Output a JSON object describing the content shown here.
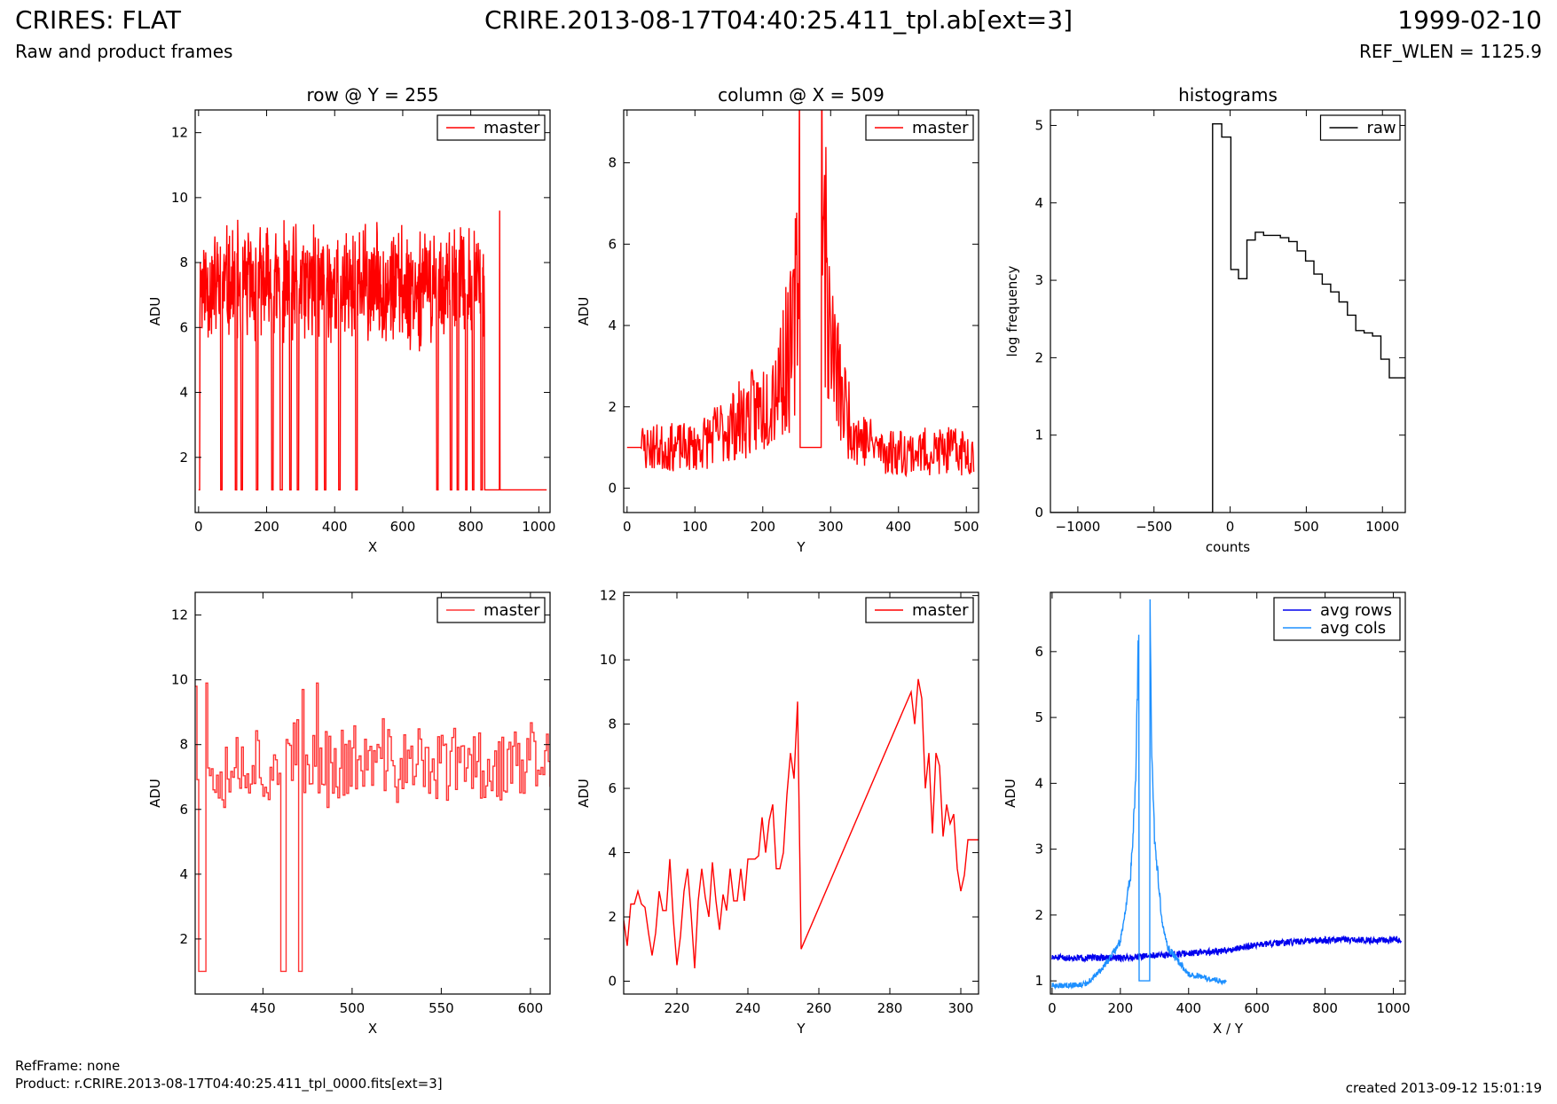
{
  "header": {
    "title_left": "CRIRES: FLAT",
    "subtitle_left": "Raw and product frames",
    "title_center": "CRIRE.2013-08-17T04:40:25.411_tpl.ab[ext=3]",
    "title_right": "1999-02-10",
    "subtitle_right": "REF_WLEN = 1125.9"
  },
  "footer": {
    "refframe": "RefFrame: none",
    "product": "Product: r.CRIRE.2013-08-17T04:40:25.411_tpl_0000.fits[ext=3]",
    "created": "created 2013-09-12 15:01:19"
  },
  "colors": {
    "red": "#ff0000",
    "red_light": "#ff3333",
    "blue": "#0000ee",
    "light_blue": "#1e90ff",
    "black": "#000000"
  },
  "chart_data": [
    {
      "type": "line",
      "title": "row @ Y = 255",
      "xlabel": "X",
      "ylabel": "ADU",
      "xlim": [
        -10,
        1033
      ],
      "ylim": [
        0.3,
        12.7
      ],
      "xticks": [
        0,
        200,
        400,
        600,
        800,
        1000
      ],
      "yticks": [
        2,
        4,
        6,
        8,
        10,
        12
      ],
      "legend": "top-right",
      "series": [
        {
          "name": "master",
          "color": "#ff0000",
          "style": "noise",
          "x_range": [
            0,
            1023
          ],
          "n": 1024,
          "base": 7.3,
          "noise": 1.5,
          "min": 5.0,
          "max": 9.9,
          "seed": 11,
          "drops": [
            [
              0,
              3
            ],
            [
              65,
              69
            ],
            [
              108,
              112
            ],
            [
              125,
              129
            ],
            [
              170,
              174
            ],
            [
              215,
              219
            ],
            [
              240,
              246
            ],
            [
              268,
              272
            ],
            [
              290,
              294
            ],
            [
              345,
              349
            ],
            [
              370,
              374
            ],
            [
              412,
              416
            ],
            [
              462,
              466
            ],
            [
              700,
              704
            ],
            [
              740,
              744
            ],
            [
              760,
              764
            ],
            [
              785,
              789
            ],
            [
              805,
              809
            ],
            [
              830,
              834
            ]
          ],
          "flat_after": 840,
          "flat_value": 1.0,
          "spikes": [
            [
              885,
              9.6
            ]
          ]
        }
      ]
    },
    {
      "type": "line",
      "title": "column @ X = 509",
      "xlabel": "Y",
      "ylabel": "ADU",
      "xlim": [
        -5,
        518
      ],
      "ylim": [
        -0.6,
        9.3
      ],
      "xticks": [
        0,
        100,
        200,
        300,
        400,
        500
      ],
      "yticks": [
        0,
        2,
        4,
        6,
        8
      ],
      "legend": "top-right",
      "series": [
        {
          "name": "master",
          "color": "#ff0000",
          "style": "profile",
          "n": 512,
          "seed": 23,
          "profile": [
            [
              0,
              1.0
            ],
            [
              100,
              1.0
            ],
            [
              150,
              1.5
            ],
            [
              200,
              2.0
            ],
            [
              230,
              3.0
            ],
            [
              245,
              3.5
            ],
            [
              252,
              5.5
            ],
            [
              254,
              8.7
            ],
            [
              255,
              1.0
            ],
            [
              286,
              1.0
            ],
            [
              287,
              9.4
            ],
            [
              292,
              5.5
            ],
            [
              300,
              3.5
            ],
            [
              320,
              2.0
            ],
            [
              340,
              1.3
            ],
            [
              380,
              0.9
            ],
            [
              511,
              0.9
            ]
          ],
          "noise": 0.6,
          "clip_min": 0.1,
          "flat_segments": [
            [
              0,
              20,
              1.0
            ],
            [
              255,
              286,
              1.0
            ]
          ]
        }
      ]
    },
    {
      "type": "line",
      "title": "histograms",
      "xlabel": "counts",
      "ylabel": "log frequency",
      "xlim": [
        -1180,
        1150
      ],
      "ylim": [
        0,
        5.2
      ],
      "xticks": [
        -1000,
        -500,
        0,
        500,
        1000
      ],
      "yticks": [
        0,
        1,
        2,
        3,
        4,
        5
      ],
      "legend": "top-right",
      "series": [
        {
          "name": "raw",
          "color": "#000000",
          "style": "steps",
          "x": [
            -1180,
            -115,
            -115,
            -55,
            -55,
            5,
            5,
            55,
            55,
            110,
            110,
            165,
            165,
            220,
            220,
            275,
            275,
            330,
            330,
            385,
            385,
            440,
            440,
            495,
            495,
            550,
            550,
            605,
            605,
            660,
            660,
            715,
            715,
            770,
            770,
            825,
            825,
            880,
            880,
            935,
            935,
            990,
            990,
            1045,
            1045,
            1100,
            1100,
            1150
          ],
          "y": [
            0,
            0,
            5.02,
            5.02,
            4.85,
            4.85,
            3.14,
            3.14,
            3.02,
            3.02,
            3.52,
            3.52,
            3.62,
            3.62,
            3.58,
            3.58,
            3.58,
            3.58,
            3.55,
            3.55,
            3.5,
            3.5,
            3.38,
            3.38,
            3.25,
            3.25,
            3.08,
            3.08,
            2.95,
            2.95,
            2.85,
            2.85,
            2.72,
            2.72,
            2.55,
            2.55,
            2.35,
            2.35,
            2.32,
            2.32,
            2.28,
            2.28,
            1.98,
            1.98,
            1.74,
            1.74,
            1.74,
            1.74
          ]
        }
      ]
    },
    {
      "type": "line",
      "title": "",
      "xlabel": "X",
      "ylabel": "ADU",
      "xlim": [
        412,
        611
      ],
      "ylim": [
        0.3,
        12.7
      ],
      "xticks": [
        450,
        500,
        550,
        600
      ],
      "yticks": [
        2,
        4,
        6,
        8,
        10,
        12
      ],
      "legend": "top-right",
      "series": [
        {
          "name": "master",
          "color": "#ff3333",
          "style": "noise-steps",
          "x_range": [
            412,
            611
          ],
          "n": 200,
          "base": 7.4,
          "noise": 1.1,
          "min": 4.4,
          "max": 9.9,
          "seed": 37,
          "drops": [
            [
              414,
              417
            ],
            [
              460,
              462
            ],
            [
              470,
              472
            ]
          ],
          "flat_after": 9999,
          "flat_value": 1.0,
          "spikes": [
            [
              412,
              9.8
            ],
            [
              418,
              9.9
            ],
            [
              472,
              9.7
            ],
            [
              480,
              9.9
            ],
            [
              557,
              8.5
            ],
            [
              602,
              8.1
            ]
          ]
        }
      ]
    },
    {
      "type": "line",
      "title": "",
      "xlabel": "Y",
      "ylabel": "ADU",
      "xlim": [
        205,
        305
      ],
      "ylim": [
        -0.4,
        12.1
      ],
      "xticks": [
        220,
        240,
        260,
        280,
        300
      ],
      "yticks": [
        0,
        2,
        4,
        6,
        8,
        10,
        12
      ],
      "legend": "top-right",
      "series": [
        {
          "name": "master",
          "color": "#ff0000",
          "style": "steps",
          "x": [
            205,
            206,
            207,
            208,
            209,
            210,
            211,
            212,
            213,
            214,
            215,
            216,
            217,
            218,
            219,
            220,
            221,
            222,
            223,
            224,
            225,
            226,
            227,
            228,
            229,
            230,
            231,
            232,
            233,
            234,
            235,
            236,
            237,
            238,
            239,
            240,
            241,
            242,
            243,
            244,
            245,
            246,
            247,
            248,
            249,
            250,
            251,
            252,
            253,
            254,
            255,
            286,
            287,
            288,
            289,
            290,
            291,
            292,
            293,
            294,
            295,
            296,
            297,
            298,
            299,
            300,
            301,
            302,
            303,
            304,
            305
          ],
          "y": [
            1.9,
            1.1,
            2.4,
            2.4,
            2.8,
            2.4,
            2.3,
            1.5,
            0.8,
            1.5,
            2.8,
            2.2,
            2.2,
            3.8,
            1.9,
            0.5,
            1.4,
            2.8,
            3.5,
            2.1,
            0.4,
            2.5,
            3.5,
            2.6,
            2.0,
            3.7,
            2.5,
            1.6,
            2.7,
            2.2,
            3.5,
            2.5,
            2.5,
            3.5,
            2.5,
            3.8,
            3.8,
            3.8,
            3.9,
            5.1,
            4.0,
            5.0,
            5.5,
            3.5,
            3.5,
            4.0,
            5.8,
            7.1,
            6.3,
            8.7,
            1.0,
            9.0,
            8.0,
            9.4,
            8.8,
            6.0,
            7.1,
            4.6,
            7.1,
            6.7,
            4.5,
            5.5,
            4.9,
            5.2,
            3.5,
            2.8,
            3.3,
            4.4,
            4.4,
            4.4,
            4.4
          ]
        }
      ]
    },
    {
      "type": "line",
      "title": "",
      "xlabel": "X / Y",
      "ylabel": "ADU",
      "xlim": [
        -5,
        1035
      ],
      "ylim": [
        0.8,
        6.9
      ],
      "xticks": [
        0,
        200,
        400,
        600,
        800,
        1000
      ],
      "yticks": [
        1,
        2,
        3,
        4,
        5,
        6
      ],
      "legend": "top-right",
      "series": [
        {
          "name": "avg rows",
          "color": "#0000ee",
          "style": "trend",
          "n": 1024,
          "x_range": [
            0,
            1023
          ],
          "seed": 51,
          "profile": [
            [
              0,
              1.35
            ],
            [
              200,
              1.35
            ],
            [
              400,
              1.42
            ],
            [
              500,
              1.45
            ],
            [
              600,
              1.55
            ],
            [
              800,
              1.62
            ],
            [
              1023,
              1.62
            ]
          ],
          "noise": 0.05
        },
        {
          "name": "avg cols",
          "color": "#1e90ff",
          "style": "profile",
          "n": 512,
          "seed": 63,
          "profile": [
            [
              0,
              0.92
            ],
            [
              100,
              0.95
            ],
            [
              150,
              1.2
            ],
            [
              200,
              1.6
            ],
            [
              230,
              2.6
            ],
            [
              245,
              4.0
            ],
            [
              252,
              6.0
            ],
            [
              254,
              6.4
            ],
            [
              255,
              1.0
            ],
            [
              286,
              1.0
            ],
            [
              287,
              6.9
            ],
            [
              292,
              4.4
            ],
            [
              300,
              3.2
            ],
            [
              320,
              2.0
            ],
            [
              340,
              1.5
            ],
            [
              400,
              1.1
            ],
            [
              511,
              0.98
            ]
          ],
          "noise": 0.04,
          "clip_min": 0.5,
          "flat_segments": [
            [
              255,
              286,
              1.0
            ]
          ]
        }
      ]
    }
  ]
}
